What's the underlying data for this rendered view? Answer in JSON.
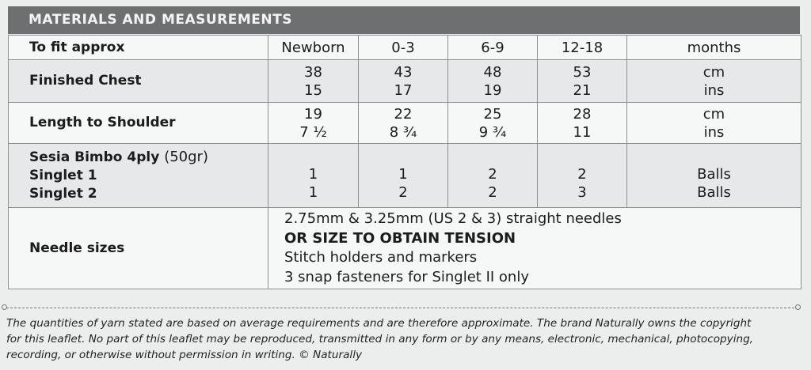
{
  "header": {
    "title": "MATERIALS AND MEASUREMENTS"
  },
  "table": {
    "rows": [
      {
        "label": "To fit approx",
        "cells": [
          [
            "Newborn"
          ],
          [
            "0-3"
          ],
          [
            "6-9"
          ],
          [
            "12-18"
          ],
          [
            "months"
          ]
        ]
      },
      {
        "label": "Finished Chest",
        "cells": [
          [
            "38",
            "15"
          ],
          [
            "43",
            "17"
          ],
          [
            "48",
            "19"
          ],
          [
            "53",
            "21"
          ],
          [
            "cm",
            "ins"
          ]
        ]
      },
      {
        "label": "Length to Shoulder",
        "cells": [
          [
            "19",
            "7 ½"
          ],
          [
            "22",
            "8 ¾"
          ],
          [
            "25",
            "9 ¾"
          ],
          [
            "28",
            "11"
          ],
          [
            "cm",
            "ins"
          ]
        ]
      },
      {
        "label": "Sesia Bimbo 4ply",
        "label_note": "(50gr)",
        "sublabels": [
          "Singlet 1",
          "Singlet 2"
        ],
        "cells": [
          [
            "1",
            "1"
          ],
          [
            "1",
            "2"
          ],
          [
            "2",
            "2"
          ],
          [
            "2",
            "3"
          ],
          [
            "Balls",
            "Balls"
          ]
        ]
      },
      {
        "label": "Needle sizes",
        "lines": [
          "2.75mm & 3.25mm (US 2 & 3) straight needles",
          "OR SIZE TO OBTAIN TENSION",
          "Stitch holders and markers",
          "3 snap fasteners for Singlet II only"
        ]
      }
    ]
  },
  "footnote": [
    "The quantities of yarn stated are based on average requirements and are therefore approximate. The brand Naturally owns the copyright",
    "for this leaflet. No part of this leaflet may be reproduced, transmitted in any form or by any means, electronic, mechanical, photocopying,",
    "recording, or otherwise without permission in writing. © Naturally"
  ]
}
